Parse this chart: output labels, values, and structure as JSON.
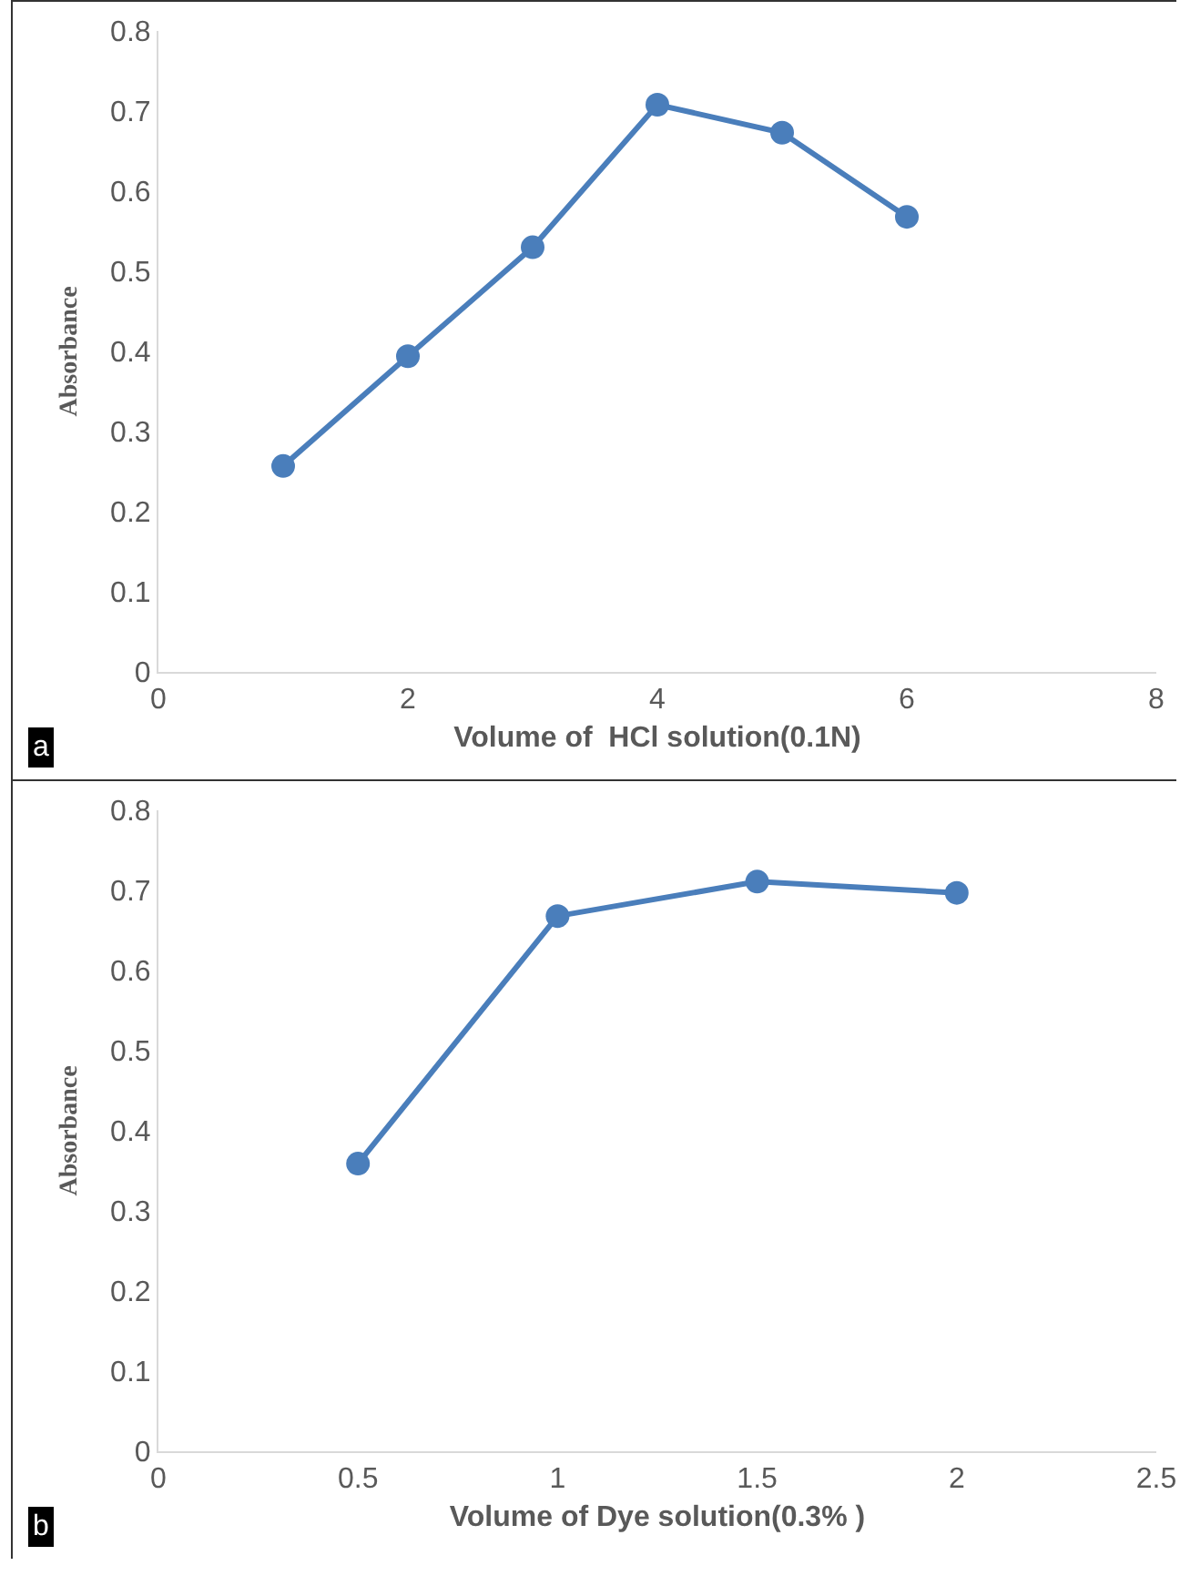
{
  "chart_data": [
    {
      "type": "line",
      "x": [
        1,
        2,
        3,
        4,
        5,
        6
      ],
      "xlabel": "Volume of  HCl solution(0.1N)",
      "ylabel": "Absorbance",
      "annotations": [
        "a"
      ],
      "series": [
        {
          "color": "#4a7ebb",
          "values": [
            0.257,
            0.394,
            0.53,
            0.708,
            0.673,
            0.568
          ]
        }
      ],
      "xlim": [
        0,
        8
      ],
      "xticks": [
        0,
        2,
        4,
        6,
        8
      ],
      "ylim": [
        0,
        0.8
      ],
      "yticks": [
        0,
        0.1,
        0.2,
        0.3,
        0.4,
        0.5,
        0.6,
        0.7,
        0.8
      ],
      "grid": false,
      "marker": "circle",
      "line_style": "solid"
    },
    {
      "type": "line",
      "x": [
        0.5,
        1,
        1.5,
        2
      ],
      "xlabel": "Volume of Dye solution(0.3% )",
      "ylabel": "Absorbance",
      "annotations": [
        "b"
      ],
      "series": [
        {
          "color": "#4a7ebb",
          "values": [
            0.359,
            0.668,
            0.711,
            0.697
          ]
        }
      ],
      "xlim": [
        0,
        2.5
      ],
      "xticks": [
        0,
        0.5,
        1,
        1.5,
        2,
        2.5
      ],
      "ylim": [
        0,
        0.8
      ],
      "yticks": [
        0,
        0.1,
        0.2,
        0.3,
        0.4,
        0.5,
        0.6,
        0.7,
        0.8
      ],
      "grid": false,
      "marker": "circle",
      "line_style": "solid"
    }
  ]
}
